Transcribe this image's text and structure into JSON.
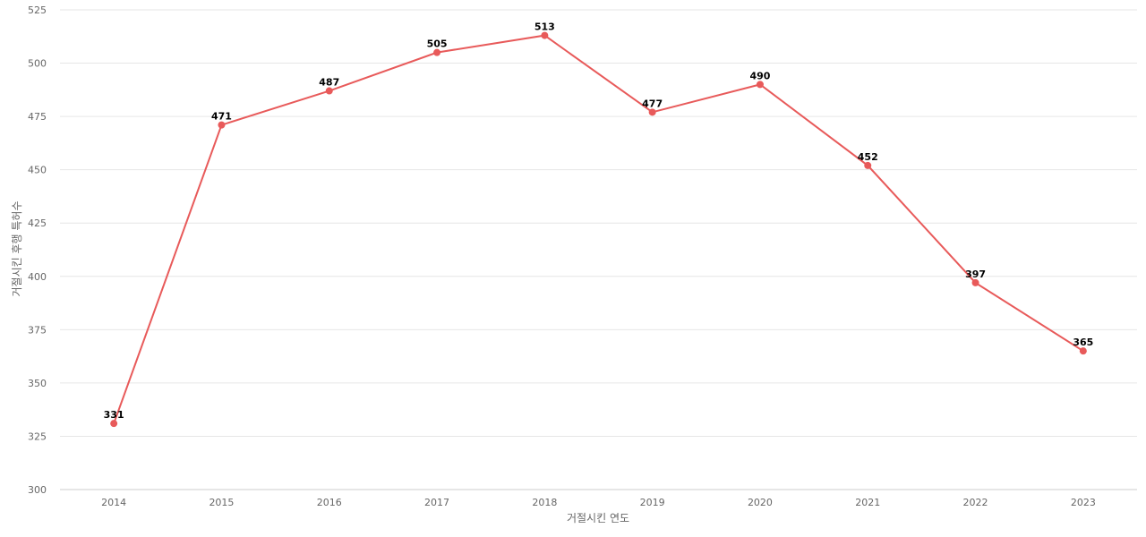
{
  "chart_data": {
    "type": "line",
    "title": "",
    "xlabel": "거절시킨 연도",
    "ylabel": "거절시킨 후행 특허수",
    "x": [
      "2014",
      "2015",
      "2016",
      "2017",
      "2018",
      "2019",
      "2020",
      "2021",
      "2022",
      "2023"
    ],
    "series": [
      {
        "values": [
          331,
          471,
          487,
          505,
          513,
          477,
          490,
          452,
          397,
          365
        ],
        "color": "#e85a5a"
      }
    ],
    "ylim": [
      300,
      525
    ],
    "yticks": [
      "300",
      "325",
      "350",
      "375",
      "400",
      "425",
      "450",
      "475",
      "500",
      "525"
    ],
    "grid": true,
    "legend": "none"
  }
}
